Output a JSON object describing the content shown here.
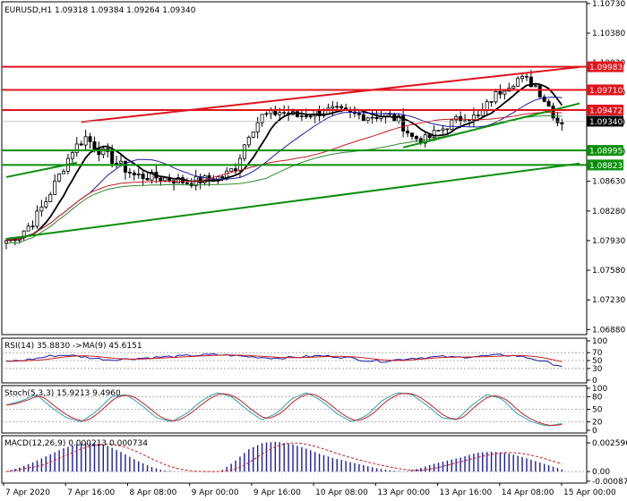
{
  "colors": {
    "resistance": "#e0141c",
    "support": "#0a8f0a",
    "candle": "#000000",
    "ma_fast": "#000000",
    "ma_mid": "#1a1aa8",
    "ma_slow_red": "#c81e1e",
    "ma_slow_green": "#2e8b2e",
    "rsi": "#1a1aa8",
    "rsi_signal": "#c81e1e",
    "stoch_main": "#2aa5b5",
    "stoch_signal": "#c81e1e",
    "macd_hist": "#1a1aa8",
    "macd_signal": "#c81e1e",
    "grid": "#9a9a9a",
    "price_tag": "#000000"
  },
  "header": {
    "symbol_tf": "EURUSD,H1",
    "ohlc": "1.09318 1.09384 1.09264 1.09340"
  },
  "chart_data": [
    {
      "type": "candlestick",
      "panel": "main",
      "ylim": [
        1.0682,
        1.1075
      ],
      "y_ticks": [
        "1.10730",
        "1.10380",
        "1.10030",
        "1.09680",
        "1.09330",
        "1.08980",
        "1.08630",
        "1.08280",
        "1.07930",
        "1.07580",
        "1.07230",
        "1.06880"
      ],
      "x_ticks": [
        "7 Apr 2020",
        "7 Apr 16:00",
        "8 Apr 08:00",
        "9 Apr 00:00",
        "9 Apr 16:00",
        "10 Apr 08:00",
        "13 Apr 00:00",
        "13 Apr 16:00",
        "14 Apr 08:00",
        "15 Apr 00:00"
      ],
      "close_anchors": [
        [
          0,
          1.0793
        ],
        [
          3,
          1.08
        ],
        [
          6,
          1.0815
        ],
        [
          9,
          1.084
        ],
        [
          12,
          1.087
        ],
        [
          15,
          1.09
        ],
        [
          18,
          1.0915
        ],
        [
          21,
          1.09
        ],
        [
          25,
          1.0885
        ],
        [
          29,
          1.087
        ],
        [
          33,
          1.0868
        ],
        [
          37,
          1.0866
        ],
        [
          41,
          1.0862
        ],
        [
          45,
          1.0865
        ],
        [
          49,
          1.0868
        ],
        [
          52,
          1.088
        ],
        [
          55,
          1.092
        ],
        [
          58,
          1.094
        ],
        [
          62,
          1.0945
        ],
        [
          66,
          1.094
        ],
        [
          70,
          1.0944
        ],
        [
          74,
          1.0947
        ],
        [
          78,
          1.0942
        ],
        [
          82,
          1.094
        ],
        [
          86,
          1.0941
        ],
        [
          89,
          1.0935
        ],
        [
          92,
          1.0915
        ],
        [
          95,
          1.0912
        ],
        [
          98,
          1.0922
        ],
        [
          101,
          1.0932
        ],
        [
          104,
          1.094
        ],
        [
          107,
          1.0938
        ],
        [
          110,
          1.096
        ],
        [
          113,
          1.0975
        ],
        [
          116,
          1.0984
        ],
        [
          118,
          1.0982
        ],
        [
          120,
          1.0976
        ],
        [
          123,
          1.0952
        ],
        [
          125,
          1.0934
        ]
      ],
      "levels": [
        {
          "price": 1.09983,
          "label": "1.09983",
          "kind": "resistance"
        },
        {
          "price": 1.0971,
          "label": "1.09710",
          "kind": "resistance"
        },
        {
          "price": 1.09472,
          "label": "1.09472",
          "kind": "resistance"
        },
        {
          "price": 1.0934,
          "label": "1.09340",
          "kind": "current"
        },
        {
          "price": 1.08995,
          "label": "1.08995",
          "kind": "support"
        },
        {
          "price": 1.08823,
          "label": "1.08823",
          "kind": "support"
        }
      ],
      "trendlines": [
        {
          "kind": "resistance",
          "from": [
            17,
            1.0933
          ],
          "to": [
            130,
            1.0998
          ]
        },
        {
          "kind": "support",
          "from": [
            0,
            1.0795
          ],
          "to": [
            130,
            1.0884
          ]
        },
        {
          "kind": "support",
          "from": [
            90,
            1.0903
          ],
          "to": [
            130,
            1.0955
          ]
        },
        {
          "kind": "support",
          "from": [
            0,
            1.0868
          ],
          "to": [
            16,
            1.0885
          ]
        }
      ]
    },
    {
      "type": "line",
      "panel": "rsi",
      "title": "RSI(14) 35.8830 ->MA(9) 45.6151",
      "ylim": [
        0,
        100
      ],
      "y_ticks": [
        "100",
        "70",
        "50",
        "30",
        "0"
      ],
      "series": [
        {
          "values": [
            48,
            50,
            55,
            62,
            64,
            60,
            55,
            52,
            54,
            56,
            58,
            60,
            62,
            64,
            65,
            63,
            60,
            58,
            56,
            58,
            60,
            62,
            60,
            56,
            50,
            48,
            52,
            56,
            58,
            60,
            58,
            60,
            62,
            64,
            62,
            55,
            45,
            36
          ]
        }
      ]
    },
    {
      "type": "line",
      "panel": "stoch",
      "title": "Stoch(5,3,3) 15.9213 9.4960",
      "ylim": [
        0,
        100
      ],
      "y_ticks": [
        "100",
        "80",
        "50",
        "20",
        "0"
      ],
      "series": [
        {
          "values": [
            60,
            70,
            85,
            55,
            30,
            20,
            45,
            80,
            85,
            60,
            30,
            20,
            40,
            70,
            90,
            80,
            50,
            25,
            40,
            75,
            90,
            70,
            40,
            20,
            35,
            70,
            90,
            85,
            60,
            30,
            25,
            60,
            85,
            75,
            40,
            20,
            10,
            16
          ]
        }
      ]
    },
    {
      "type": "bar",
      "panel": "macd",
      "title": "MACD(12,26,9) 0.000213 0.000734",
      "ylim": [
        -0.0008,
        0.003
      ],
      "y_ticks": [
        "0.002596",
        "0.00",
        "-0.000872"
      ],
      "series": [
        {
          "values": [
            0.0,
            0.0004,
            0.0009,
            0.0015,
            0.0021,
            0.0025,
            0.0026,
            0.0024,
            0.0018,
            0.0011,
            0.0005,
            0.0001,
            0.0,
            0.0,
            0.0,
            0.0,
            0.0009,
            0.002,
            0.0026,
            0.0027,
            0.0025,
            0.0021,
            0.0016,
            0.0012,
            0.0009,
            0.0006,
            0.0003,
            0.0001,
            0.0,
            0.0003,
            0.0007,
            0.001,
            0.0013,
            0.0017,
            0.0018,
            0.0017,
            0.0014,
            0.001,
            0.0006,
            0.0002
          ]
        }
      ]
    }
  ]
}
